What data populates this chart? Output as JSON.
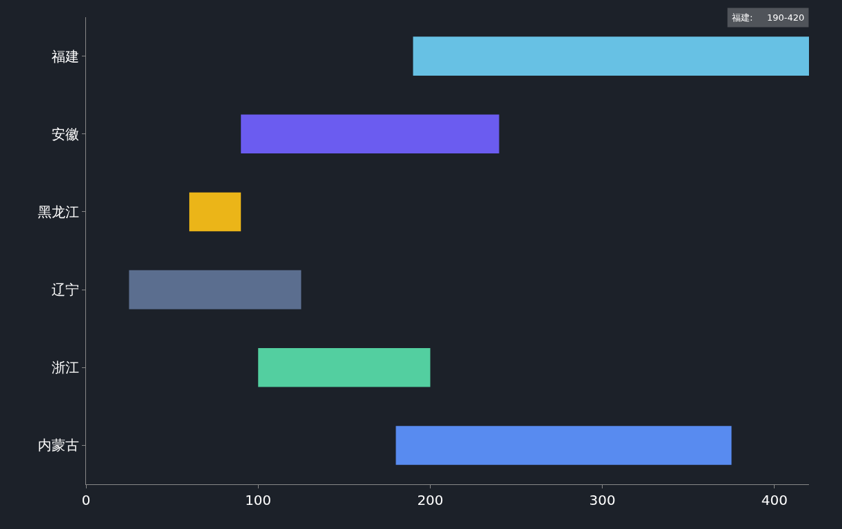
{
  "chart_data": {
    "type": "bar",
    "orientation": "horizontal",
    "categories": [
      "福建",
      "安徽",
      "黑龙江",
      "辽宁",
      "浙江",
      "内蒙古"
    ],
    "base": [
      190,
      90,
      60,
      25,
      100,
      180
    ],
    "values": [
      230,
      150,
      30,
      100,
      100,
      195
    ],
    "colors": [
      "#67c1e4",
      "#6b5cf0",
      "#ebb518",
      "#5b6e8f",
      "#53cfa0",
      "#588bf0"
    ],
    "xlim": [
      0,
      420
    ],
    "xticks": [
      0,
      100,
      200,
      300,
      400
    ],
    "grid": false,
    "annotations": [
      "福建:     190-420"
    ]
  }
}
